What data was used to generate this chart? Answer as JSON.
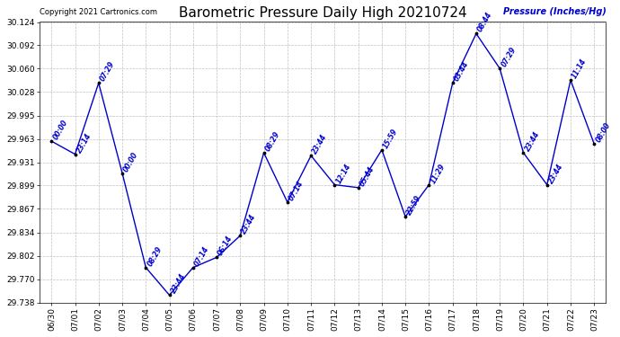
{
  "title": "Barometric Pressure Daily High 20210724",
  "ylabel": "Pressure (Inches/Hg)",
  "copyright": "Copyright 2021 Cartronics.com",
  "line_color": "#0000cc",
  "marker_color": "#000000",
  "bg_color": "#ffffff",
  "grid_color": "#c0c0c0",
  "dates": [
    "06/30",
    "07/01",
    "07/02",
    "07/03",
    "07/04",
    "07/05",
    "07/06",
    "07/07",
    "07/08",
    "07/09",
    "07/10",
    "07/11",
    "07/12",
    "07/13",
    "07/14",
    "07/15",
    "07/16",
    "07/17",
    "07/18",
    "07/19",
    "07/20",
    "07/21",
    "07/22",
    "07/23"
  ],
  "values": [
    29.96,
    29.942,
    30.04,
    29.916,
    29.786,
    29.748,
    29.786,
    29.8,
    29.83,
    29.944,
    29.876,
    29.94,
    29.9,
    29.896,
    29.948,
    29.856,
    29.9,
    30.04,
    30.108,
    30.06,
    29.944,
    29.9,
    30.044,
    29.956
  ],
  "times": [
    "00:00",
    "23:14",
    "07:29",
    "00:00",
    "08:29",
    "23:44",
    "07:14",
    "06:14",
    "23:44",
    "08:29",
    "07:14",
    "23:44",
    "12:14",
    "05:44",
    "15:59",
    "22:59",
    "11:29",
    "03:44",
    "08:44",
    "07:29",
    "23:44",
    "23:44",
    "11:14",
    "08:00"
  ],
  "ytick_values": [
    29.738,
    29.77,
    29.802,
    29.834,
    29.867,
    29.899,
    29.931,
    29.963,
    29.995,
    30.028,
    30.06,
    30.092,
    30.124
  ],
  "ylim_min": 29.738,
  "ylim_max": 30.124
}
